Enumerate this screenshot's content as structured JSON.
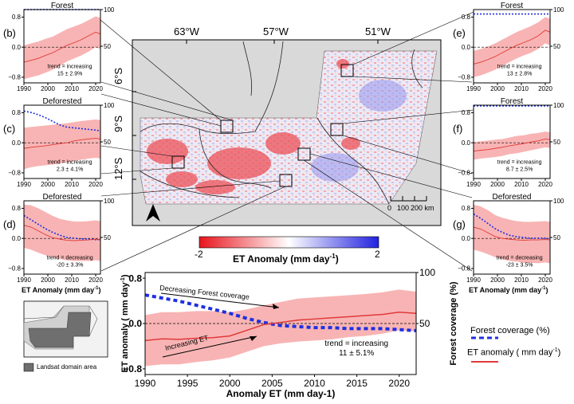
{
  "map": {
    "lon_labels": [
      "63°W",
      "57°W",
      "51°W"
    ],
    "lat_labels": [
      "6°S",
      "9°S",
      "12°S"
    ],
    "scalebar_labels": [
      "0",
      "100",
      "200 km"
    ],
    "colorbar_min": "-2",
    "colorbar_max": "2",
    "colorbar_title": "ET Anomaly (mm day",
    "colorbar_title_sup": "-1",
    "colorbar_title_end": ")",
    "colors": {
      "negative": "#e8141c",
      "neutral": "#ffffff",
      "positive": "#2121e0"
    }
  },
  "inset": {
    "legend_label": "Landsat domain area"
  },
  "legend": {
    "forest_label": "Forest coverage (%)",
    "et_label": "ET anomaly ( mm day",
    "et_label_sup": "-1",
    "et_label_end": ")"
  },
  "colors": {
    "forest": "#1f2fe0",
    "et_line": "#e03a3a",
    "et_band": "#f7a7a7"
  },
  "chart_data": [
    {
      "id": "main",
      "type": "line",
      "xlabel": "Anomaly ET (mm day-1)",
      "ylabel": "ET anomaly ( mm day",
      "ylabel_sup": "-1",
      "ylabel_end": ")",
      "ylabel_right": "Forest coverage (%)",
      "xlim": [
        1990,
        2022
      ],
      "ylim": [
        -0.9,
        0.9
      ],
      "y2lim": [
        0,
        100
      ],
      "xticks": [
        1990,
        1995,
        2000,
        2005,
        2010,
        2015,
        2020
      ],
      "yticks": [
        -0.8,
        0.0,
        0.8
      ],
      "y2ticks": [
        50,
        100
      ],
      "trend_label": "trend = increasing",
      "trend_value": "11 ± 5.1%",
      "annotations": [
        "Decreasing Forest coverage",
        "Increasing ET"
      ],
      "x": [
        1990,
        1992,
        1994,
        1996,
        1998,
        2000,
        2002,
        2004,
        2006,
        2008,
        2010,
        2012,
        2014,
        2016,
        2018,
        2020,
        2022
      ],
      "et": [
        -0.3,
        -0.27,
        -0.28,
        -0.26,
        -0.25,
        -0.22,
        -0.12,
        -0.02,
        0.02,
        0.06,
        0.08,
        0.1,
        0.12,
        0.14,
        0.16,
        0.2,
        0.18
      ],
      "et_lo": [
        -0.75,
        -0.72,
        -0.72,
        -0.68,
        -0.65,
        -0.6,
        -0.5,
        -0.4,
        -0.35,
        -0.32,
        -0.3,
        -0.28,
        -0.24,
        -0.22,
        -0.18,
        -0.12,
        -0.14
      ],
      "et_hi": [
        0.15,
        0.2,
        0.2,
        0.22,
        0.22,
        0.2,
        0.25,
        0.32,
        0.38,
        0.44,
        0.46,
        0.48,
        0.5,
        0.52,
        0.55,
        0.6,
        0.56
      ],
      "forest": [
        78,
        75,
        72,
        68,
        64,
        60,
        55,
        51,
        48,
        47,
        46,
        46,
        45,
        45,
        45,
        44,
        43
      ]
    },
    {
      "id": "b",
      "title": "Forest",
      "label": "(b)",
      "type": "line",
      "xlim": [
        1990,
        2022
      ],
      "ylim": [
        -0.95,
        1.0
      ],
      "y2lim": [
        0,
        100
      ],
      "xticks": [
        1990,
        2000,
        2010,
        2020
      ],
      "yticks": [
        -0.8,
        0.0,
        0.8
      ],
      "y2ticks": [
        50,
        100
      ],
      "trend_label": "trend = increasing",
      "trend_value": "15 ± 2.9%",
      "x": [
        1990,
        1993,
        1996,
        1999,
        2002,
        2005,
        2008,
        2011,
        2014,
        2017,
        2020,
        2022
      ],
      "et": [
        -0.4,
        -0.35,
        -0.3,
        -0.22,
        -0.15,
        -0.05,
        0.05,
        0.12,
        0.2,
        0.3,
        0.4,
        0.35
      ],
      "et_lo": [
        -0.85,
        -0.8,
        -0.75,
        -0.68,
        -0.6,
        -0.5,
        -0.38,
        -0.3,
        -0.22,
        -0.12,
        0.0,
        -0.05
      ],
      "et_hi": [
        0.05,
        0.1,
        0.15,
        0.22,
        0.28,
        0.38,
        0.48,
        0.55,
        0.62,
        0.72,
        0.82,
        0.78
      ],
      "forest": [
        100,
        100,
        100,
        100,
        100,
        100,
        100,
        100,
        100,
        100,
        100,
        100
      ]
    },
    {
      "id": "c",
      "title": "Deforested",
      "label": "(c)",
      "type": "line",
      "xlim": [
        1990,
        2022
      ],
      "ylim": [
        -0.95,
        1.0
      ],
      "y2lim": [
        0,
        100
      ],
      "xticks": [
        1990,
        2000,
        2010,
        2020
      ],
      "yticks": [
        -0.8,
        0.0,
        0.8
      ],
      "y2ticks": [
        50,
        100
      ],
      "trend_label": "trend = increasing",
      "trend_value": "2.3 ± 4.1%",
      "x": [
        1990,
        1993,
        1996,
        1999,
        2002,
        2005,
        2008,
        2011,
        2014,
        2017,
        2020,
        2022
      ],
      "et": [
        -0.15,
        -0.12,
        -0.1,
        -0.08,
        -0.05,
        -0.02,
        0.0,
        0.05,
        0.08,
        0.1,
        0.12,
        0.1
      ],
      "et_lo": [
        -0.7,
        -0.65,
        -0.62,
        -0.6,
        -0.58,
        -0.55,
        -0.52,
        -0.48,
        -0.45,
        -0.42,
        -0.4,
        -0.42
      ],
      "et_hi": [
        0.4,
        0.42,
        0.44,
        0.46,
        0.48,
        0.5,
        0.52,
        0.55,
        0.58,
        0.6,
        0.62,
        0.6
      ],
      "forest": [
        92,
        90,
        87,
        83,
        78,
        73,
        70,
        69,
        68,
        67,
        66,
        65
      ]
    },
    {
      "id": "d",
      "title": "Deforested",
      "label": "(d)",
      "type": "line",
      "xlim": [
        1990,
        2022
      ],
      "ylim": [
        -0.95,
        1.0
      ],
      "y2lim": [
        0,
        100
      ],
      "xticks": [
        1990,
        2000,
        2010,
        2020
      ],
      "yticks": [
        -0.8,
        0.0,
        0.8
      ],
      "y2ticks": [
        50,
        100
      ],
      "trend_label": "trend = decreasing",
      "trend_value": "-20 ± 3.3%",
      "x": [
        1990,
        1993,
        1996,
        1999,
        2002,
        2005,
        2008,
        2011,
        2014,
        2017,
        2020,
        2022
      ],
      "et": [
        0.35,
        0.3,
        0.2,
        0.1,
        0.02,
        -0.02,
        -0.05,
        -0.06,
        -0.05,
        -0.04,
        -0.02,
        -0.04
      ],
      "et_lo": [
        -0.25,
        -0.3,
        -0.38,
        -0.45,
        -0.5,
        -0.55,
        -0.58,
        -0.6,
        -0.6,
        -0.6,
        -0.58,
        -0.6
      ],
      "et_hi": [
        0.9,
        0.88,
        0.8,
        0.7,
        0.6,
        0.52,
        0.48,
        0.45,
        0.45,
        0.46,
        0.48,
        0.46
      ],
      "forest": [
        80,
        74,
        68,
        62,
        57,
        53,
        50,
        49,
        48,
        48,
        47,
        47
      ]
    },
    {
      "id": "e",
      "title": "Forest",
      "label": "(e)",
      "type": "line",
      "xlim": [
        1990,
        2022
      ],
      "ylim": [
        -0.95,
        1.0
      ],
      "y2lim": [
        0,
        100
      ],
      "xticks": [
        1990,
        2000,
        2010,
        2020
      ],
      "yticks": [
        -0.8,
        0.0,
        0.8
      ],
      "y2ticks": [
        50,
        100
      ],
      "trend_label": "trend = increasing",
      "trend_value": "13 ± 2.8%",
      "x": [
        1990,
        1993,
        1996,
        1999,
        2002,
        2005,
        2008,
        2011,
        2014,
        2017,
        2020,
        2022
      ],
      "et": [
        -0.45,
        -0.4,
        -0.33,
        -0.25,
        -0.15,
        -0.05,
        0.05,
        0.12,
        0.2,
        0.3,
        0.45,
        0.4
      ],
      "et_lo": [
        -0.8,
        -0.75,
        -0.68,
        -0.6,
        -0.5,
        -0.4,
        -0.3,
        -0.22,
        -0.15,
        -0.05,
        0.1,
        0.05
      ],
      "et_hi": [
        -0.1,
        -0.05,
        0.02,
        0.1,
        0.2,
        0.3,
        0.4,
        0.48,
        0.56,
        0.66,
        0.8,
        0.75
      ],
      "forest": [
        94,
        94,
        94,
        94,
        94,
        94,
        94,
        94,
        94,
        94,
        94,
        94
      ]
    },
    {
      "id": "f",
      "title": "Forest",
      "label": "(f)",
      "type": "line",
      "xlim": [
        1990,
        2022
      ],
      "ylim": [
        -0.95,
        1.0
      ],
      "y2lim": [
        0,
        100
      ],
      "xticks": [
        1990,
        2000,
        2010,
        2020
      ],
      "yticks": [
        -0.8,
        0.0,
        0.8
      ],
      "y2ticks": [
        50,
        100
      ],
      "trend_label": "trend = increasing",
      "trend_value": "8.7 ± 2.5%",
      "x": [
        1990,
        1993,
        1996,
        1999,
        2002,
        2005,
        2008,
        2011,
        2014,
        2017,
        2020,
        2022
      ],
      "et": [
        -0.22,
        -0.2,
        -0.18,
        -0.15,
        -0.12,
        -0.08,
        -0.05,
        -0.02,
        0.02,
        0.05,
        0.1,
        0.08
      ],
      "et_lo": [
        -0.45,
        -0.42,
        -0.4,
        -0.38,
        -0.35,
        -0.3,
        -0.28,
        -0.24,
        -0.2,
        -0.16,
        -0.12,
        -0.14
      ],
      "et_hi": [
        0.02,
        0.04,
        0.06,
        0.08,
        0.1,
        0.14,
        0.18,
        0.2,
        0.24,
        0.26,
        0.3,
        0.28
      ],
      "forest": [
        99,
        99,
        99,
        99,
        99,
        99,
        99,
        99,
        99,
        99,
        99,
        99
      ]
    },
    {
      "id": "g",
      "title": "Deforested",
      "label": "(g)",
      "type": "line",
      "xlim": [
        1990,
        2022
      ],
      "ylim": [
        -0.95,
        1.0
      ],
      "y2lim": [
        0,
        100
      ],
      "xticks": [
        1990,
        2000,
        2010,
        2020
      ],
      "yticks": [
        -0.8,
        0.0,
        0.8
      ],
      "y2ticks": [
        50,
        100
      ],
      "trend_label": "trend = decreasing",
      "trend_value": "-23 ± 3.5%",
      "x": [
        1990,
        1993,
        1996,
        1999,
        2002,
        2005,
        2008,
        2011,
        2014,
        2017,
        2020,
        2022
      ],
      "et": [
        0.3,
        0.25,
        0.15,
        0.05,
        0.0,
        -0.02,
        -0.04,
        -0.05,
        -0.04,
        -0.04,
        -0.03,
        -0.04
      ],
      "et_lo": [
        -0.3,
        -0.35,
        -0.42,
        -0.5,
        -0.55,
        -0.6,
        -0.62,
        -0.65,
        -0.65,
        -0.66,
        -0.64,
        -0.66
      ],
      "et_hi": [
        0.9,
        0.85,
        0.75,
        0.62,
        0.55,
        0.5,
        0.46,
        0.44,
        0.44,
        0.45,
        0.46,
        0.44
      ],
      "forest": [
        82,
        76,
        69,
        62,
        57,
        53,
        51,
        50,
        49,
        49,
        49,
        48
      ]
    }
  ],
  "small_xlabel": "ET Anomaly (mm day",
  "small_xlabel_sup": "-1",
  "small_xlabel_end": ")"
}
